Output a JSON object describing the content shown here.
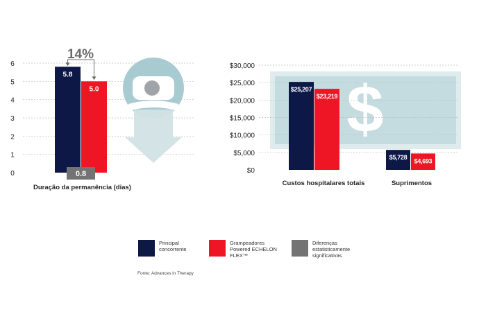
{
  "colors": {
    "principal": "#0d1847",
    "echelon": "#ee1625",
    "difference": "#737373",
    "annotation": "#6b6b6b",
    "dollar_bg": "#c4dbe0",
    "dollar_border": "#dfecee",
    "icon_circle": "#a8cad1",
    "icon_arrow": "#d2e2e5"
  },
  "icons": [
    "patient-bed-icon",
    "down-arrow-icon",
    "dollar-sign-icon"
  ],
  "chart_data": [
    {
      "type": "bar",
      "categories": [
        "Duração da permanência (dias)"
      ],
      "series": [
        {
          "name": "Principal concorrente",
          "values": [
            5.8
          ]
        },
        {
          "name": "Grampeadores Powered ECHELON FLEX™",
          "values": [
            5.0
          ]
        }
      ],
      "data_labels": [
        "5.8",
        "5.0"
      ],
      "difference_label": "0.8",
      "annotation": "14%",
      "ylim": [
        0,
        6
      ],
      "yticks": [
        "0",
        "1",
        "2",
        "3",
        "4",
        "5",
        "6"
      ],
      "grid": true
    },
    {
      "type": "bar",
      "categories": [
        "Custos hospitalares totais",
        "Suprimentos"
      ],
      "series": [
        {
          "name": "Principal concorrente",
          "values": [
            25207,
            5728
          ]
        },
        {
          "name": "Grampeadores Powered ECHELON FLEX™",
          "values": [
            23219,
            4693
          ]
        }
      ],
      "data_labels": [
        [
          "$25,207",
          "$5,728"
        ],
        [
          "$23,219",
          "$4,693"
        ]
      ],
      "ylim": [
        0,
        30000
      ],
      "yticks": [
        "$0",
        "$5,000",
        "$10,000",
        "$15,000",
        "$20,000",
        "$25,000",
        "$30,000"
      ],
      "grid": true
    }
  ],
  "legend": [
    {
      "label": "Principal concorrente"
    },
    {
      "label": "Grampeadores Powered ECHELON FLEX™"
    },
    {
      "label": "Diferenças estatisticamente significativas"
    }
  ],
  "source": "Fonte: Advances in Therapy"
}
